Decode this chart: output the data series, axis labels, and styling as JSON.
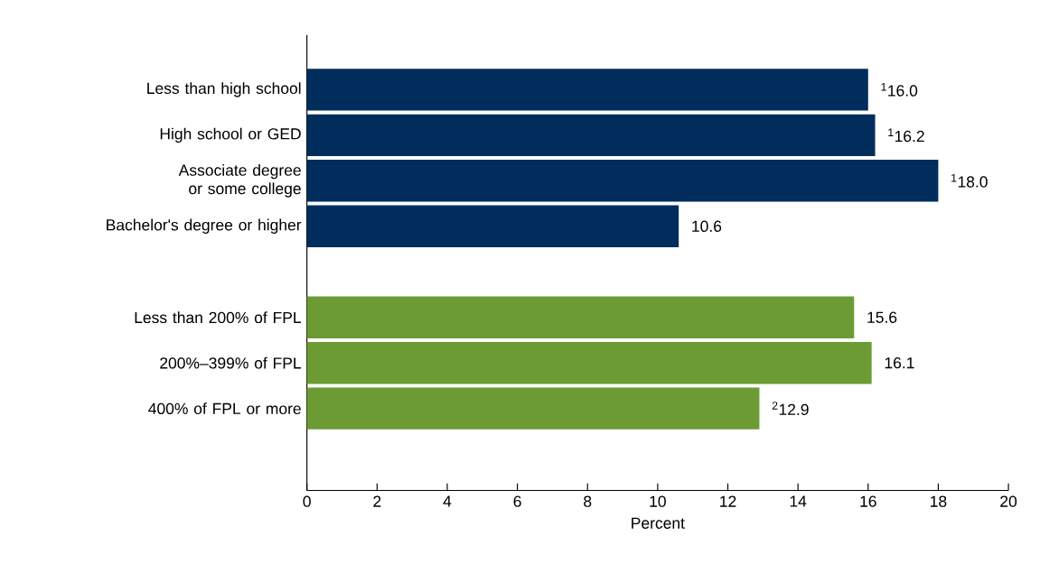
{
  "chart_data": {
    "type": "bar",
    "orientation": "horizontal",
    "xlabel": "Percent",
    "categories": [
      "Less than high school",
      "High school or GED",
      "Associate degree or some college",
      "Bachelor's degree or higher",
      null,
      "Less than 200% of FPL",
      "200%–399% of FPL",
      "400% of FPL or more"
    ],
    "values": [
      16.0,
      16.2,
      18.0,
      10.6,
      null,
      15.6,
      16.1,
      12.9
    ],
    "colors": [
      "#002d5c",
      "#002d5c",
      "#002d5c",
      "#002d5c",
      null,
      "#6b9b32",
      "#6b9b32",
      "#6b9b32"
    ],
    "value_labels": [
      "$^{1}$16.0",
      "$^{1}$16.2",
      "$^{1}$18.0",
      "10.6",
      null,
      "15.6",
      "16.1",
      "$^{2}$12.9"
    ],
    "xlim": [
      0,
      20
    ],
    "xticks": [
      0,
      2,
      4,
      6,
      8,
      10,
      12,
      14,
      16,
      18,
      20
    ]
  }
}
